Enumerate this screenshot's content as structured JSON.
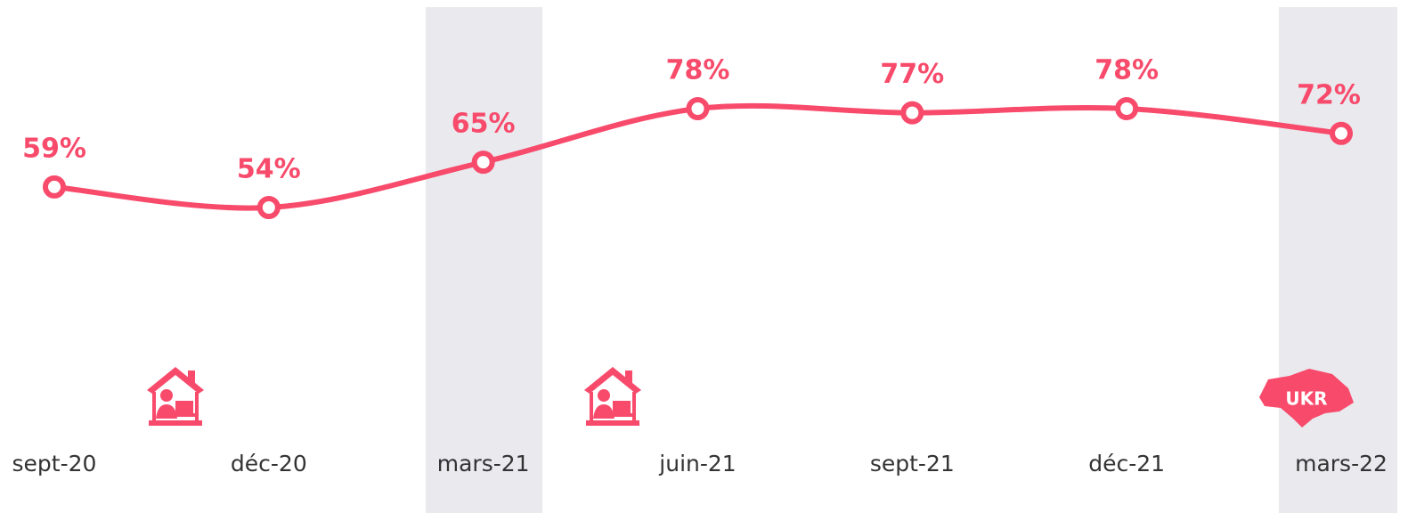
{
  "chart_data": {
    "type": "line",
    "categories": [
      "sept-20",
      "déc-20",
      "mars-21",
      "juin-21",
      "sept-21",
      "déc-21",
      "mars-22"
    ],
    "values": [
      59,
      54,
      65,
      78,
      77,
      78,
      72
    ],
    "value_labels": [
      "59%",
      "54%",
      "65%",
      "78%",
      "77%",
      "78%",
      "72%"
    ],
    "color": "#f84a6b",
    "annotations": [
      "UKR"
    ]
  }
}
